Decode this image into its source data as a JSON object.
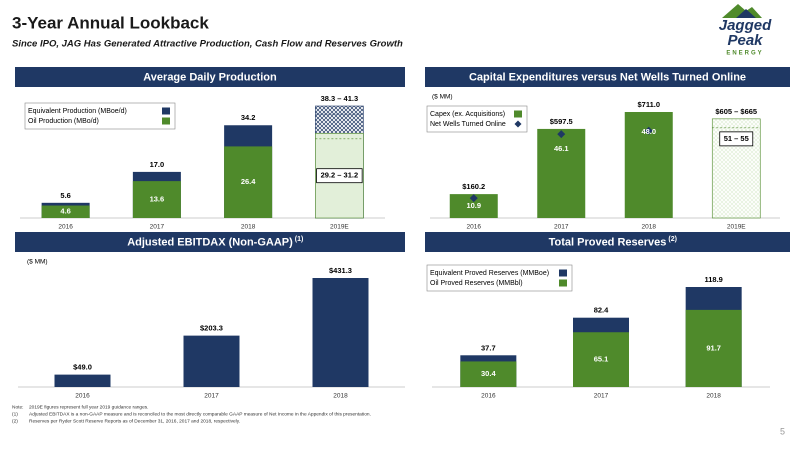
{
  "slide": {
    "title": "3-Year Annual Lookback",
    "subtitle": "Since IPO, JAG Has Generated Attractive Production, Cash Flow and Reserves Growth",
    "logo": [
      "Jagged",
      "Peak",
      "ENERGY"
    ],
    "notes": [
      {
        "marker": "Note:",
        "text": "2019E figures represent full year 2019 guidance ranges."
      },
      {
        "marker": "(1)",
        "text": "Adjusted EBITDAX is a non-GAAP measure and is reconciled to the most directly comparable GAAP measure of Net Income in the Appendix of this presentation."
      },
      {
        "marker": "(2)",
        "text": "Reserves per Ryder Scott Reserve Reports as of December 31, 2016, 2017 and 2018, respectively."
      }
    ],
    "page": "5"
  },
  "chart_data": [
    {
      "type": "bar",
      "title": "Average Daily Production",
      "legend": "upper left",
      "categories": [
        "2016",
        "2017",
        "2018",
        "2019E"
      ],
      "series": [
        {
          "name": "Equivalent Production (MBoe/d)",
          "color": "#1f3864",
          "range_color": "#1f3864",
          "range_style": "hatch",
          "values": [
            5.6,
            17.0,
            34.2,
            [
              38.3,
              41.3
            ]
          ],
          "value_labels": [
            "5.6",
            "17.0",
            "34.2",
            "38.3 – 41.3"
          ]
        },
        {
          "name": "Oil Production (MBo/d)",
          "color": "#4f8a2b",
          "range_color": "#e2efd9",
          "range_style": "solid",
          "values": [
            4.6,
            13.6,
            26.4,
            [
              29.2,
              31.2
            ]
          ],
          "value_labels": [
            "4.6",
            "13.6",
            "26.4",
            "29.2 – 31.2"
          ]
        }
      ]
    },
    {
      "type": "bar",
      "title": "Capital Expenditures versus Net Wells Turned Online",
      "unit": "($ MM)",
      "legend": "upper left",
      "categories": [
        "2016",
        "2017",
        "2018",
        "2019E"
      ],
      "series": [
        {
          "name": "Capex (ex. Acquisitions)",
          "color": "#4f8a2b",
          "range_color": "#e2efd9",
          "range_style": "hatch",
          "values": [
            160.2,
            597.5,
            711.0,
            [
              605,
              665
            ]
          ],
          "value_labels": [
            "$160.2",
            "$597.5",
            "$711.0",
            "$605 – $665"
          ]
        },
        {
          "name": "Net Wells Turned Online",
          "color": "#1f3864",
          "axis": "y2",
          "marker": "diamond",
          "values": [
            10.9,
            46.1,
            48.0,
            [
              51,
              55
            ]
          ],
          "value_labels": [
            "10.9",
            "46.1",
            "48.0",
            "51 – 55"
          ]
        }
      ]
    },
    {
      "type": "bar",
      "title": "Adjusted EBITDAX (Non-GAAP)",
      "title_note": "(1)",
      "unit": "($ MM)",
      "categories": [
        "2016",
        "2017",
        "2018"
      ],
      "color": "#1f3864",
      "values": [
        49.0,
        203.3,
        431.3
      ],
      "value_labels": [
        "$49.0",
        "$203.3",
        "$431.3"
      ]
    },
    {
      "type": "bar",
      "title": "Total Proved Reserves",
      "title_note": "(2)",
      "legend": "upper left",
      "categories": [
        "2016",
        "2017",
        "2018"
      ],
      "series": [
        {
          "name": "Equivalent Proved Reserves (MMBoe)",
          "color": "#1f3864",
          "values": [
            37.7,
            82.4,
            118.9
          ],
          "value_labels": [
            "37.7",
            "82.4",
            "118.9"
          ]
        },
        {
          "name": "Oil Proved Reserves (MMBbl)",
          "color": "#4f8a2b",
          "values": [
            30.4,
            65.1,
            91.7
          ],
          "value_labels": [
            "30.4",
            "65.1",
            "91.7"
          ]
        }
      ]
    }
  ]
}
